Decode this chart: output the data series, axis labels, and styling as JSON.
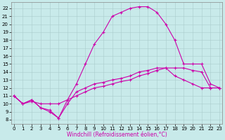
{
  "xlabel": "Windchill (Refroidissement éolien,°C)",
  "bg_color": "#c8eaea",
  "line_color": "#cc00aa",
  "grid_color": "#aacccc",
  "xlim": [
    -0.3,
    23.3
  ],
  "ylim": [
    7.5,
    22.8
  ],
  "xticks": [
    0,
    1,
    2,
    3,
    4,
    5,
    6,
    7,
    8,
    9,
    10,
    11,
    12,
    13,
    14,
    15,
    16,
    17,
    18,
    19,
    20,
    21,
    22,
    23
  ],
  "yticks": [
    8,
    9,
    10,
    11,
    12,
    13,
    14,
    15,
    16,
    17,
    18,
    19,
    20,
    21,
    22
  ],
  "curve1_x": [
    0,
    1,
    2,
    3,
    4,
    5,
    6,
    7,
    8,
    9,
    10,
    11,
    12,
    13,
    14,
    15,
    16,
    17,
    18,
    19,
    20,
    21,
    22,
    23
  ],
  "curve1_y": [
    11.0,
    10.0,
    10.5,
    9.5,
    9.0,
    8.2,
    10.5,
    12.5,
    15.0,
    17.5,
    19.0,
    21.0,
    21.5,
    22.0,
    22.2,
    22.2,
    21.5,
    20.0,
    18.0,
    15.0,
    15.0,
    15.0,
    12.5,
    12.0
  ],
  "curve2_x": [
    0,
    1,
    2,
    3,
    4,
    5,
    6,
    7,
    8,
    9,
    10,
    11,
    12,
    13,
    14,
    15,
    16,
    17,
    18,
    19,
    20,
    21,
    22,
    23
  ],
  "curve2_y": [
    11.0,
    10.0,
    10.3,
    10.0,
    10.0,
    10.0,
    10.5,
    11.0,
    11.5,
    12.0,
    12.2,
    12.5,
    12.8,
    13.0,
    13.5,
    13.8,
    14.2,
    14.5,
    14.5,
    14.5,
    14.2,
    14.0,
    12.0,
    12.0
  ],
  "curve3_x": [
    0,
    1,
    2,
    3,
    4,
    5,
    6,
    7,
    8,
    9,
    10,
    11,
    12,
    13,
    14,
    15,
    16,
    17,
    18,
    19,
    20,
    21,
    22,
    23
  ],
  "curve3_y": [
    11.0,
    10.0,
    10.5,
    9.5,
    9.2,
    8.2,
    10.0,
    11.5,
    12.0,
    12.5,
    12.7,
    13.0,
    13.2,
    13.5,
    14.0,
    14.2,
    14.5,
    14.5,
    13.5,
    13.0,
    12.5,
    12.0,
    12.0,
    12.0
  ],
  "tick_fontsize": 5,
  "xlabel_fontsize": 5.5,
  "linewidth": 0.8,
  "markersize": 3.5,
  "markeredgewidth": 0.8
}
